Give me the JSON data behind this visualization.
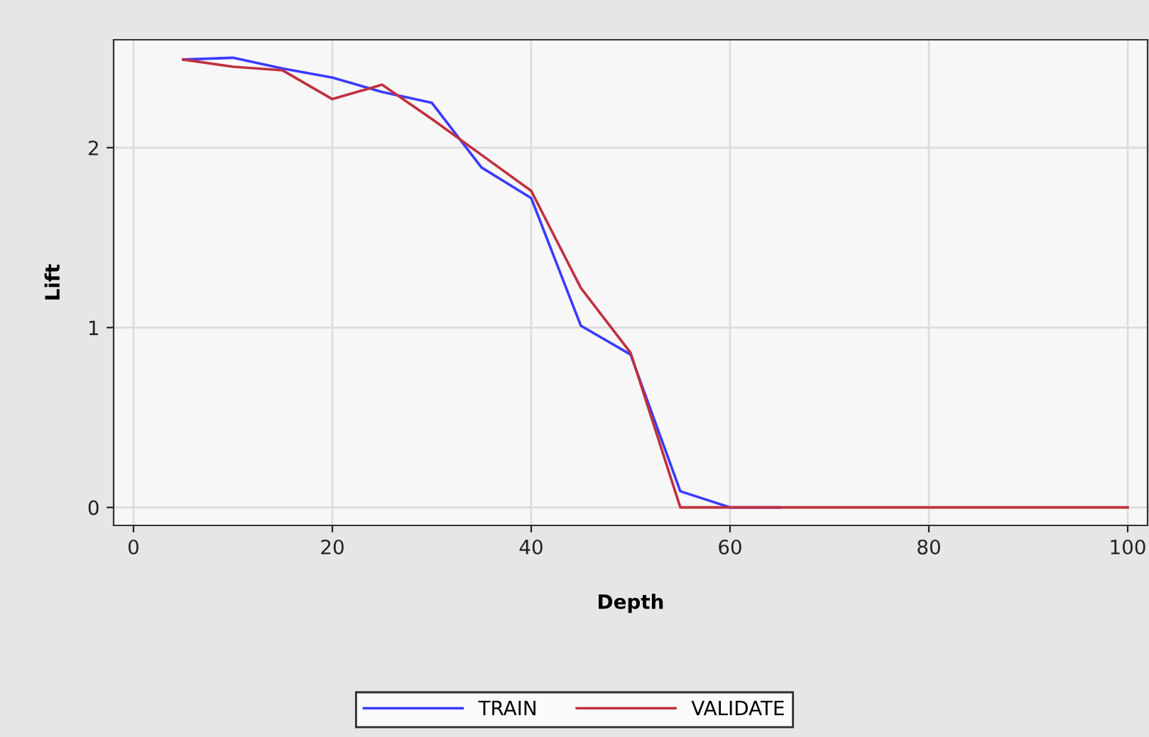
{
  "chart_data": {
    "type": "line",
    "xlabel": "Depth",
    "ylabel": "Lift",
    "xlim": [
      -2,
      102
    ],
    "ylim": [
      -0.1,
      2.6
    ],
    "xticks": [
      0,
      20,
      40,
      60,
      80,
      100
    ],
    "yticks": [
      0,
      1,
      2
    ],
    "grid": true,
    "legend": "bottom",
    "marker": "none",
    "line_style": "solid",
    "x": [
      5,
      10,
      15,
      20,
      25,
      30,
      35,
      40,
      45,
      50,
      55,
      60,
      65,
      70,
      75,
      80,
      85,
      90,
      95,
      100
    ],
    "series": [
      {
        "name": "TRAIN",
        "color": "#3b3bff",
        "values": [
          2.49,
          2.5,
          2.44,
          2.39,
          2.31,
          2.25,
          1.89,
          1.72,
          1.01,
          0.85,
          0.09,
          0,
          0,
          null,
          null,
          null,
          null,
          null,
          null,
          null
        ]
      },
      {
        "name": "VALIDATE",
        "color": "#c0303e",
        "values": [
          2.49,
          2.45,
          2.43,
          2.27,
          2.35,
          2.16,
          1.96,
          1.76,
          1.22,
          0.86,
          0,
          0,
          0,
          0,
          0,
          0,
          0,
          0,
          0,
          0
        ]
      }
    ]
  }
}
